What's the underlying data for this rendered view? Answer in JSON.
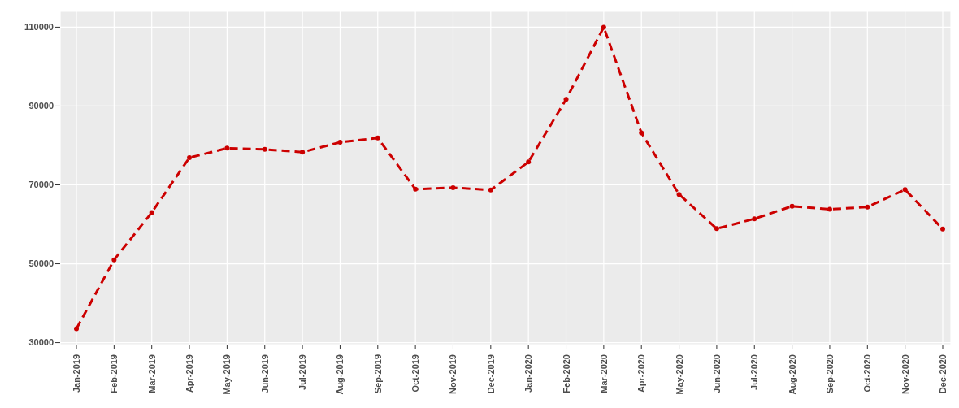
{
  "chart_data": {
    "type": "line",
    "categories": [
      "Jan-2019",
      "Feb-2019",
      "Mar-2019",
      "Apr-2019",
      "May-2019",
      "Jun-2019",
      "Jul-2019",
      "Aug-2019",
      "Sep-2019",
      "Oct-2019",
      "Nov-2019",
      "Dec-2019",
      "Jan-2020",
      "Feb-2020",
      "Mar-2020",
      "Apr-2020",
      "May-2020",
      "Jun-2020",
      "Jul-2020",
      "Aug-2020",
      "Sep-2020",
      "Oct-2020",
      "Nov-2020",
      "Dec-2020"
    ],
    "series": [
      {
        "color": "#cc0000",
        "values": [
          33500,
          51000,
          63000,
          76900,
          79300,
          79000,
          78300,
          80800,
          81900,
          68900,
          69300,
          68700,
          75800,
          91700,
          110000,
          83200,
          67600,
          58900,
          61400,
          64600,
          63800,
          64400,
          68800,
          58800
        ]
      }
    ],
    "ylim": [
      29500,
      114000
    ],
    "yticks": [
      30000,
      50000,
      70000,
      90000,
      110000
    ],
    "grid": true,
    "marker": "circle",
    "line_style": "dashed"
  }
}
